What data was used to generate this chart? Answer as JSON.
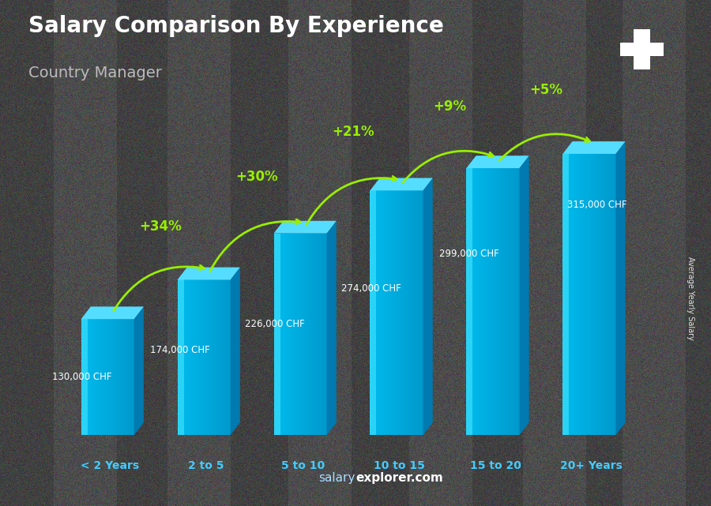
{
  "title": "Salary Comparison By Experience",
  "subtitle": "Country Manager",
  "categories": [
    "< 2 Years",
    "2 to 5",
    "5 to 10",
    "10 to 15",
    "15 to 20",
    "20+ Years"
  ],
  "values": [
    130000,
    174000,
    226000,
    274000,
    299000,
    315000
  ],
  "value_labels": [
    "130,000 CHF",
    "174,000 CHF",
    "226,000 CHF",
    "274,000 CHF",
    "299,000 CHF",
    "315,000 CHF"
  ],
  "pct_labels": [
    "+34%",
    "+30%",
    "+21%",
    "+9%",
    "+5%"
  ],
  "bar_color_front": "#00aadd",
  "bar_color_side": "#007ab0",
  "bar_color_top": "#55ddff",
  "bar_color_left": "#005580",
  "title_color": "#ffffff",
  "subtitle_color": "#bbbbbb",
  "label_color": "#ffffff",
  "pct_color": "#99ee00",
  "cat_color": "#44ccff",
  "watermark_color": "#aaddff",
  "watermark": "salaryexplorer.com",
  "ylabel": "Average Yearly Salary",
  "bg_color": "#4a4a4a",
  "flag_bg": "#cc2222",
  "flag_cross": "#ffffff",
  "arrow_color": "#99ee00"
}
